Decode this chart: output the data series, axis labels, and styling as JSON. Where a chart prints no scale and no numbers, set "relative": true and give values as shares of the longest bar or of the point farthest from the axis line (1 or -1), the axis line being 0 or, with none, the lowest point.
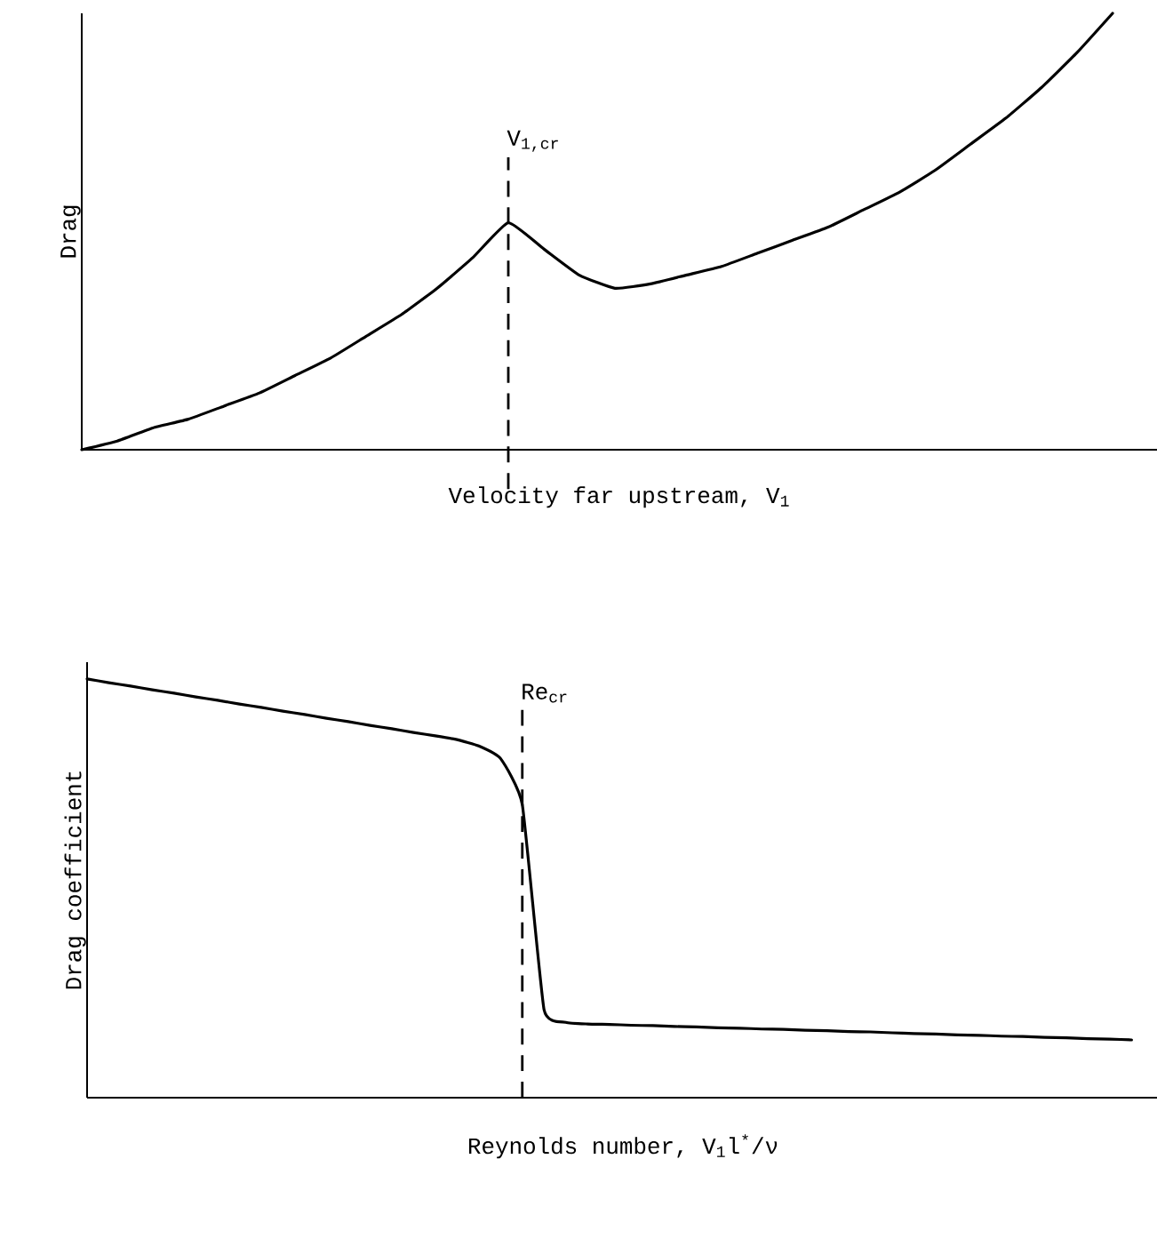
{
  "chart_data": [
    {
      "type": "line",
      "relative": true,
      "xlabel": "Velocity far upstream, V$_{1}$",
      "ylabel": "Drag",
      "categories": [
        null,
        null,
        null,
        null,
        null,
        null,
        null,
        null,
        null,
        null,
        null,
        null,
        null,
        null,
        null,
        null,
        null,
        null,
        null,
        null,
        null,
        null,
        null,
        null,
        null,
        null,
        null,
        null,
        null,
        null,
        null
      ],
      "series": [
        {
          "color": "#000000",
          "values": [
            0,
            0.02,
            0.05,
            0.07,
            0.1,
            0.13,
            0.17,
            0.21,
            0.26,
            0.31,
            0.37,
            0.44,
            0.52,
            0.46,
            0.4,
            0.37,
            0.38,
            0.4,
            0.42,
            0.45,
            0.48,
            0.51,
            0.55,
            0.59,
            0.64,
            0.7,
            0.76,
            0.83,
            0.91,
            1,
            null
          ]
        }
      ],
      "annotations": [
        "V$_{1,cr}$"
      ]
    },
    {
      "type": "line",
      "relative": true,
      "xlabel": "Reynolds number, V$_{1}$l$^{*}$/ν",
      "ylabel": "Drag coefficient",
      "categories": [
        null,
        null,
        null,
        null,
        null,
        null,
        null,
        null,
        null,
        null,
        null,
        null,
        null,
        null,
        null,
        null,
        null,
        null,
        null,
        null,
        null,
        null,
        null,
        null,
        null,
        null,
        null,
        null,
        null,
        null,
        null,
        null,
        null,
        null,
        null,
        null,
        null,
        null,
        null,
        null,
        null,
        null,
        null,
        null,
        null,
        null,
        null,
        null,
        null,
        null
      ],
      "series": [
        {
          "color": "#000000",
          "values": [
            1,
            0.991,
            0.983,
            0.974,
            0.966,
            0.957,
            0.949,
            0.94,
            0.932,
            0.923,
            0.915,
            0.906,
            0.898,
            0.889,
            0.881,
            0.872,
            0.864,
            0.855,
            0.84,
            0.81,
            0.7,
            0.21,
            0.18,
            0.176,
            0.175,
            0.173,
            0.172,
            0.17,
            0.169,
            0.167,
            0.166,
            0.164,
            0.163,
            0.161,
            0.16,
            0.158,
            0.157,
            0.155,
            0.153,
            0.152,
            0.15,
            0.149,
            0.147,
            0.146,
            0.144,
            0.143,
            0.141,
            0.14,
            0.138,
            null
          ]
        }
      ],
      "annotations": [
        "Re$_{cr}$"
      ]
    }
  ]
}
